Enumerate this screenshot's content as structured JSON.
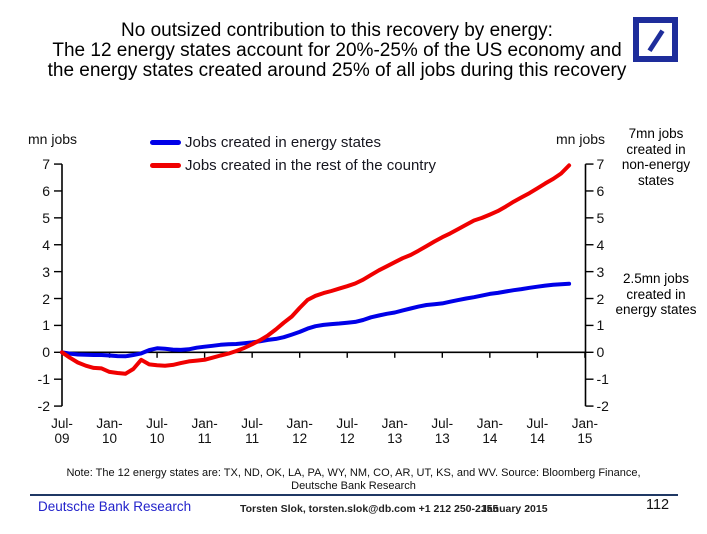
{
  "title": {
    "line1": "No outsized contribution to this recovery by energy:",
    "line2": "The 12 energy states account for 20%-25% of the US economy and",
    "line3": "the energy states created around 25% of all jobs during this recovery"
  },
  "logo": {
    "name": "deutsche-bank-logo",
    "color": "#1e2d9b"
  },
  "chart_data": {
    "type": "line",
    "title": "",
    "xlabel": "",
    "ylabel_left": "mn jobs",
    "ylabel_right": "mn jobs",
    "x_unit": "month",
    "x_start": "Jul-2009",
    "x_end": "Nov-2014",
    "x_tick_labels": [
      "Jul-09",
      "Jan-10",
      "Jul-10",
      "Jan-11",
      "Jul-11",
      "Jan-12",
      "Jul-12",
      "Jan-13",
      "Jul-13",
      "Jan-14",
      "Jul-14",
      "Jan-15"
    ],
    "y_ticks": [
      7,
      6,
      5,
      4,
      3,
      2,
      1,
      0,
      -1,
      -2
    ],
    "ylim": [
      -2,
      7
    ],
    "grid": false,
    "legend_position": "top-center",
    "zero_axis": true,
    "series": [
      {
        "name": "Jobs created in energy states",
        "color": "#0000e8",
        "values": [
          0,
          -0.05,
          -0.08,
          -0.09,
          -0.1,
          -0.1,
          -0.12,
          -0.14,
          -0.15,
          -0.1,
          -0.04,
          0.08,
          0.15,
          0.13,
          0.1,
          0.09,
          0.11,
          0.17,
          0.21,
          0.24,
          0.28,
          0.3,
          0.31,
          0.34,
          0.37,
          0.41,
          0.46,
          0.5,
          0.56,
          0.66,
          0.76,
          0.88,
          0.97,
          1.02,
          1.05,
          1.07,
          1.1,
          1.13,
          1.2,
          1.3,
          1.37,
          1.43,
          1.48,
          1.56,
          1.63,
          1.7,
          1.76,
          1.79,
          1.82,
          1.88,
          1.94,
          2.0,
          2.05,
          2.11,
          2.17,
          2.21,
          2.26,
          2.31,
          2.35,
          2.4,
          2.44,
          2.48,
          2.51,
          2.53,
          2.55
        ]
      },
      {
        "name": "Jobs created in the rest of the country",
        "color": "#f00000",
        "values": [
          0,
          -0.2,
          -0.38,
          -0.5,
          -0.58,
          -0.6,
          -0.73,
          -0.77,
          -0.8,
          -0.62,
          -0.28,
          -0.45,
          -0.48,
          -0.5,
          -0.47,
          -0.4,
          -0.34,
          -0.31,
          -0.28,
          -0.2,
          -0.12,
          -0.05,
          0.05,
          0.16,
          0.3,
          0.45,
          0.63,
          0.85,
          1.1,
          1.33,
          1.65,
          1.95,
          2.1,
          2.2,
          2.28,
          2.37,
          2.46,
          2.56,
          2.7,
          2.88,
          3.05,
          3.2,
          3.35,
          3.5,
          3.62,
          3.78,
          3.95,
          4.12,
          4.28,
          4.42,
          4.58,
          4.74,
          4.9,
          5.0,
          5.12,
          5.25,
          5.42,
          5.6,
          5.76,
          5.92,
          6.1,
          6.28,
          6.45,
          6.65,
          6.95
        ]
      }
    ]
  },
  "annotations": [
    {
      "text": "7mn jobs created in non-energy states"
    },
    {
      "text": "2.5mn jobs created in energy states"
    }
  ],
  "note": {
    "line1": "Note: The 12 energy states are: TX, ND, OK, LA, PA, WY, NM, CO, AR, UT, KS, and WV. Source: Bloomberg Finance,",
    "line2": "Deutsche Bank Research"
  },
  "footer": {
    "brand": "Deutsche Bank Research",
    "contact": "Torsten Slok, torsten.slok@db.com +1 212 250-2155",
    "date": "January 2015",
    "page": "112"
  }
}
